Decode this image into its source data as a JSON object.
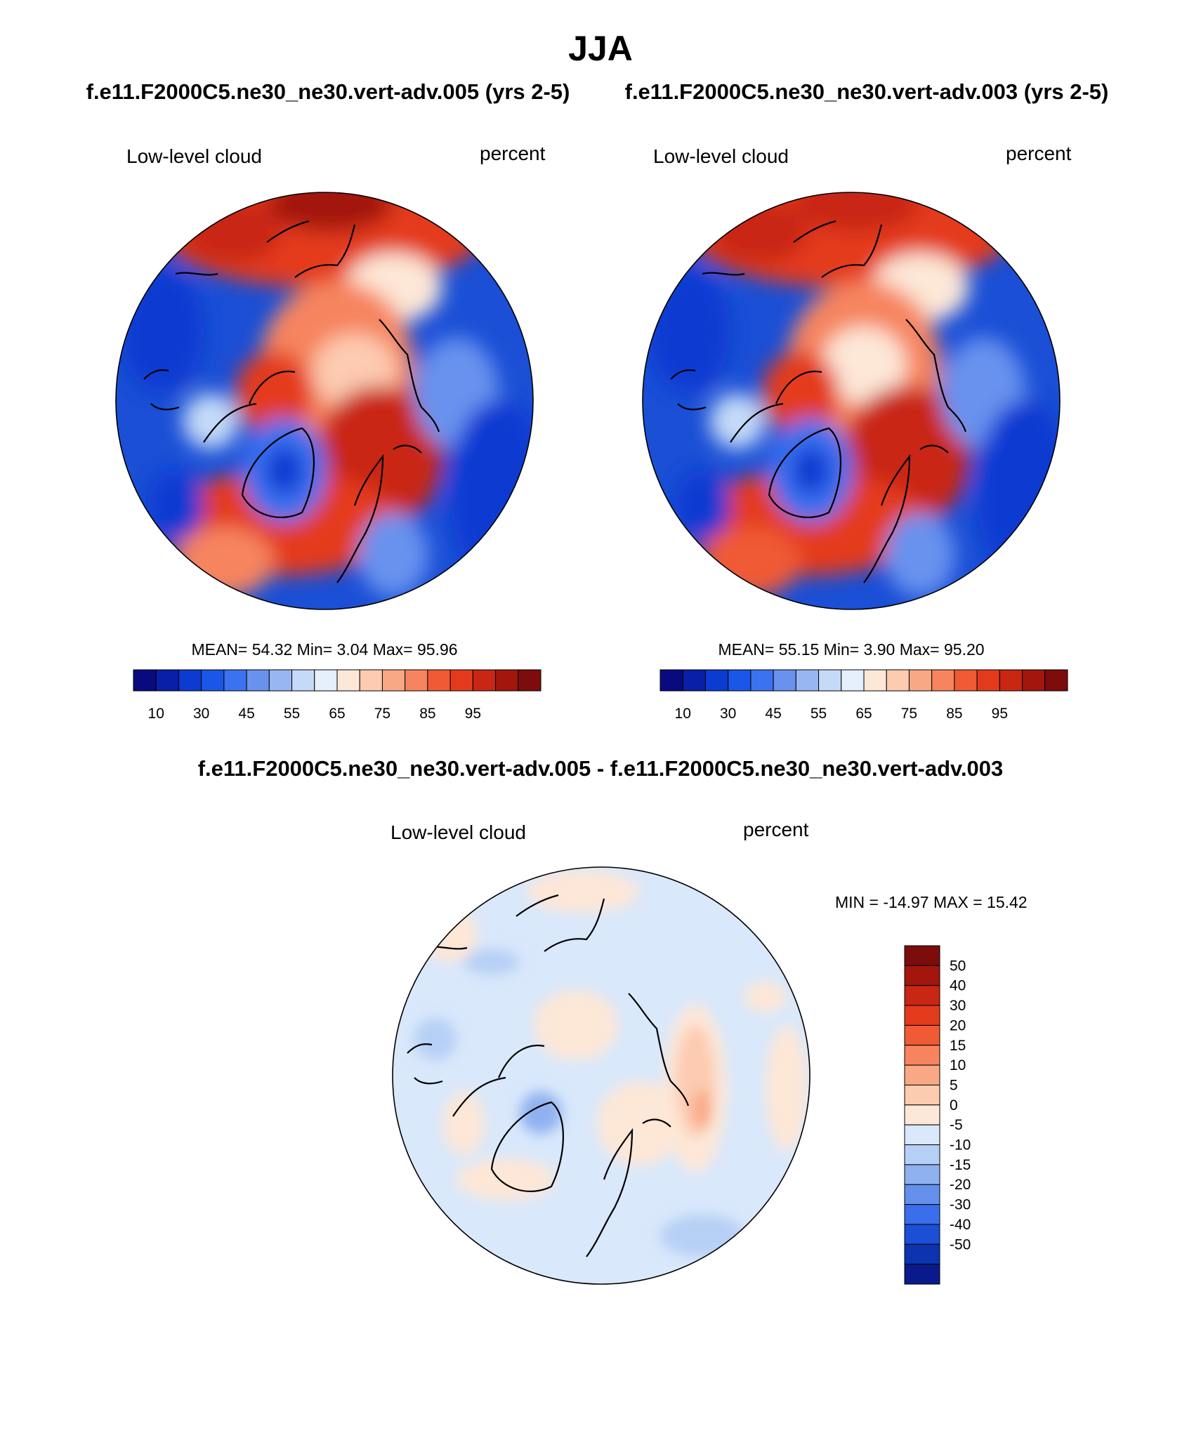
{
  "figure": {
    "title": "JJA",
    "top_subtitle_left": "f.e11.F2000C5.ne30_ne30.vert-adv.005 (yrs 2-5)",
    "top_subtitle_right": "f.e11.F2000C5.ne30_ne30.vert-adv.003 (yrs 2-5)",
    "diff_subtitle": "f.e11.F2000C5.ne30_ne30.vert-adv.005 - f.e11.F2000C5.ne30_ne30.vert-adv.003"
  },
  "chart_data": [
    {
      "type": "heatmap",
      "projection": "north-polar-stereographic",
      "case": "f.e11.F2000C5.ne30_ne30.vert-adv.005 (yrs 2-5)",
      "variable": "Low-level cloud",
      "units": "percent",
      "stats_text": "MEAN=  54.32  Min=   3.04  Max=  95.96",
      "mean": 54.32,
      "min": 3.04,
      "max": 95.96,
      "colorbar": {
        "orientation": "horizontal",
        "levels": [
          5,
          10,
          15,
          20,
          25,
          30,
          35,
          40,
          45,
          50,
          55,
          60,
          65,
          70,
          75,
          80,
          85,
          90,
          95
        ],
        "tick_labels": [
          "10",
          "30",
          "45",
          "55",
          "65",
          "75",
          "85",
          "95"
        ],
        "colors": [
          "#0a0a80",
          "#0a1fa8",
          "#0c3bd2",
          "#1a56e8",
          "#3b72f0",
          "#6892ee",
          "#97b6f2",
          "#c5daf7",
          "#e6effc",
          "#fde7d7",
          "#fccbb0",
          "#f9a885",
          "#f6845e",
          "#f05a35",
          "#e43a1c",
          "#c92614",
          "#a3160e",
          "#7c0d0c"
        ]
      }
    },
    {
      "type": "heatmap",
      "projection": "north-polar-stereographic",
      "case": "f.e11.F2000C5.ne30_ne30.vert-adv.003 (yrs 2-5)",
      "variable": "Low-level cloud",
      "units": "percent",
      "stats_text": "MEAN=  55.15  Min=   3.90  Max=  95.20",
      "mean": 55.15,
      "min": 3.9,
      "max": 95.2,
      "colorbar": {
        "orientation": "horizontal",
        "levels": [
          5,
          10,
          15,
          20,
          25,
          30,
          35,
          40,
          45,
          50,
          55,
          60,
          65,
          70,
          75,
          80,
          85,
          90,
          95
        ],
        "tick_labels": [
          "10",
          "30",
          "45",
          "55",
          "65",
          "75",
          "85",
          "95"
        ],
        "colors": [
          "#0a0a80",
          "#0a1fa8",
          "#0c3bd2",
          "#1a56e8",
          "#3b72f0",
          "#6892ee",
          "#97b6f2",
          "#c5daf7",
          "#e6effc",
          "#fde7d7",
          "#fccbb0",
          "#f9a885",
          "#f6845e",
          "#f05a35",
          "#e43a1c",
          "#c92614",
          "#a3160e",
          "#7c0d0c"
        ]
      }
    },
    {
      "type": "heatmap",
      "projection": "north-polar-stereographic",
      "case": "f.e11.F2000C5.ne30_ne30.vert-adv.005 - f.e11.F2000C5.ne30_ne30.vert-adv.003",
      "variable": "Low-level cloud",
      "units": "percent",
      "stats_text": "MIN = -14.97 MAX =  15.42",
      "min": -14.97,
      "max": 15.42,
      "colorbar": {
        "orientation": "vertical",
        "tick_labels": [
          "50",
          "40",
          "30",
          "20",
          "15",
          "10",
          "5",
          "0",
          "-5",
          "-10",
          "-15",
          "-20",
          "-30",
          "-40",
          "-50"
        ],
        "colors": [
          "#7c0d0c",
          "#a3160e",
          "#c92614",
          "#e43a1c",
          "#f05a35",
          "#f6845e",
          "#f9a885",
          "#fccbb0",
          "#fde7d7",
          "#d9e8fb",
          "#b6cff5",
          "#8fb1ef",
          "#6490ec",
          "#3a6eea",
          "#1a4fd6",
          "#0c34b0",
          "#0a1a8a"
        ]
      }
    }
  ]
}
